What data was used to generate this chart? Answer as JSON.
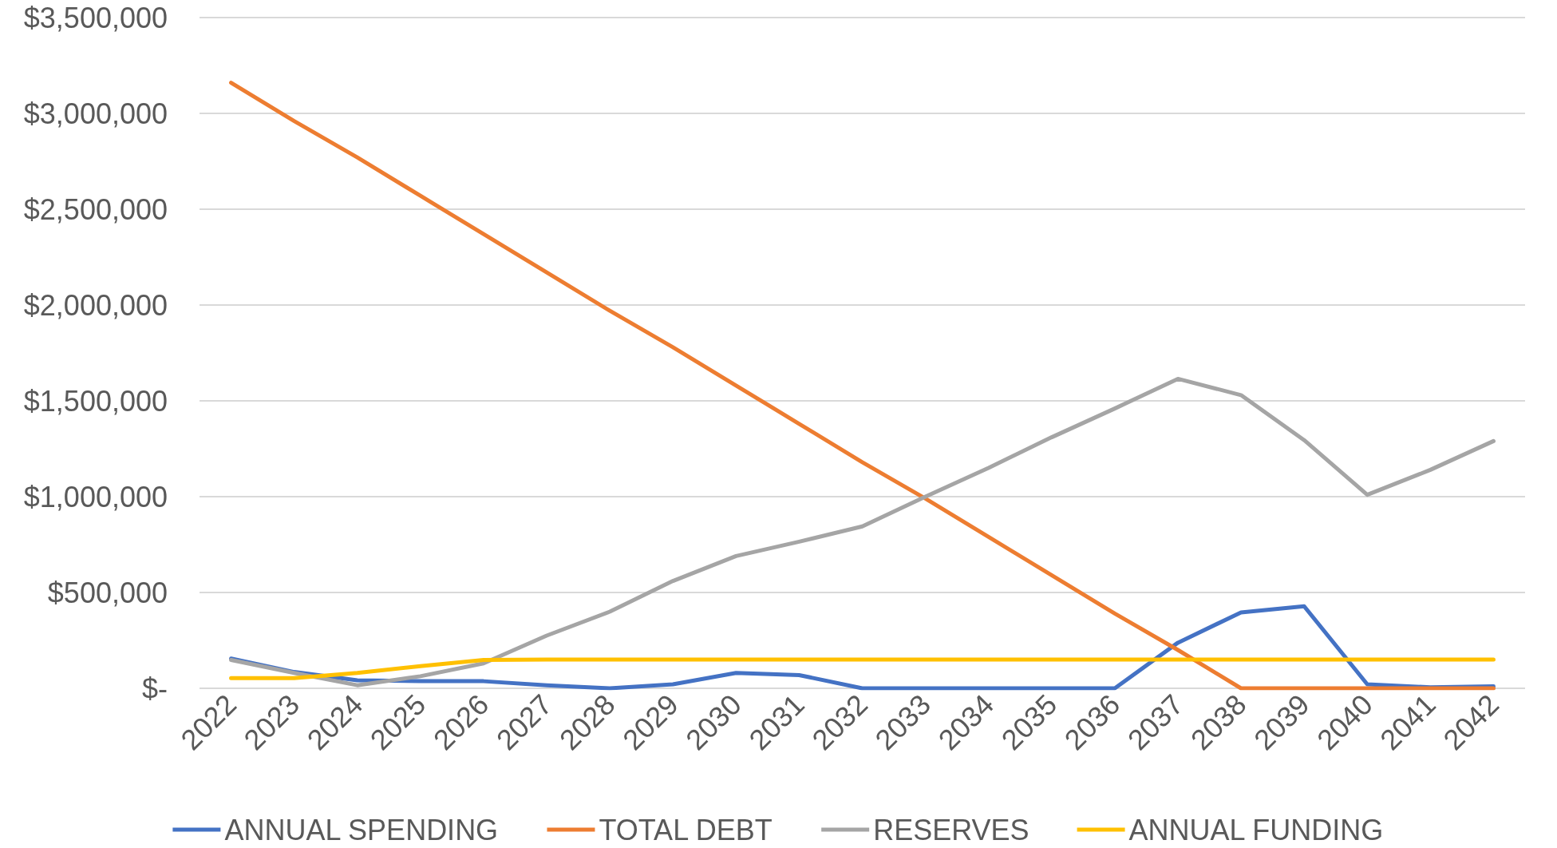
{
  "chart_data": {
    "type": "line",
    "categories": [
      "2022",
      "2023",
      "2024",
      "2025",
      "2026",
      "2027",
      "2028",
      "2029",
      "2030",
      "2031",
      "2032",
      "2033",
      "2034",
      "2035",
      "2036",
      "2037",
      "2038",
      "2039",
      "2040",
      "2041",
      "2042"
    ],
    "series": [
      {
        "name": "ANNUAL SPENDING",
        "color": "#4472c4",
        "values": [
          155000,
          85000,
          42000,
          37000,
          37000,
          16000,
          0,
          21000,
          80000,
          69000,
          0,
          0,
          0,
          0,
          0,
          238000,
          396000,
          428000,
          21000,
          5000,
          10000
        ]
      },
      {
        "name": "TOTAL DEBT",
        "color": "#ed7d31",
        "values": [
          3160000,
          2960000,
          2770000,
          2570000,
          2370000,
          2170000,
          1970000,
          1780000,
          1580000,
          1380000,
          1180000,
          990000,
          790000,
          590000,
          390000,
          200000,
          0,
          0,
          0,
          0,
          0
        ]
      },
      {
        "name": "RESERVES",
        "color": "#a5a5a5",
        "values": [
          148000,
          80000,
          16000,
          63000,
          130000,
          275000,
          400000,
          560000,
          690000,
          765000,
          845000,
          1000000,
          1150000,
          1310000,
          1460000,
          1615000,
          1530000,
          1295000,
          1010000,
          1140000,
          1290000
        ]
      },
      {
        "name": "ANNUAL FUNDING",
        "color": "#ffc000",
        "values": [
          53000,
          53000,
          80000,
          116000,
          148000,
          150000,
          150000,
          150000,
          150000,
          150000,
          150000,
          150000,
          150000,
          150000,
          150000,
          150000,
          150000,
          150000,
          150000,
          150000,
          150000
        ]
      }
    ],
    "ylim": [
      0,
      3500000
    ],
    "yticks": [
      {
        "value": 0,
        "label": "$-"
      },
      {
        "value": 500000,
        "label": "$500,000"
      },
      {
        "value": 1000000,
        "label": "$1,000,000"
      },
      {
        "value": 1500000,
        "label": "$1,500,000"
      },
      {
        "value": 2000000,
        "label": "$2,000,000"
      },
      {
        "value": 2500000,
        "label": "$2,500,000"
      },
      {
        "value": 3000000,
        "label": "$3,000,000"
      },
      {
        "value": 3500000,
        "label": "$3,500,000"
      }
    ],
    "grid": "y",
    "legend": "bottom",
    "marker": "none",
    "line_style": "solid"
  }
}
